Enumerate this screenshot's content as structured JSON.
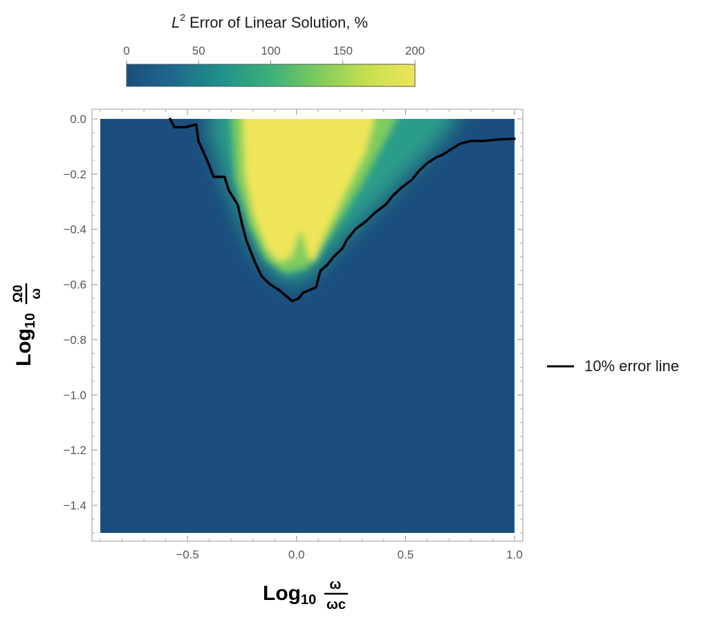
{
  "chart_data": {
    "type": "heatmap",
    "title": "Error of Linear Solution, %",
    "colorbar": {
      "title_symbol": "L",
      "title_superscript": "2",
      "title_text": "Error of Linear Solution, %",
      "range": [
        0,
        200
      ],
      "ticks": [
        "0",
        "50",
        "100",
        "150",
        "200"
      ],
      "tick_values": [
        0,
        50,
        100,
        150,
        200
      ],
      "colors": [
        "#1b4e7e",
        "#1f6a8c",
        "#21928b",
        "#3bb07a",
        "#7fcb5e",
        "#c6df4e",
        "#eee55a"
      ],
      "placement": "top"
    },
    "xlabel": {
      "prefix": "Log",
      "subscript": "10",
      "numerator": "ω",
      "denominator": "ωc"
    },
    "ylabel": {
      "prefix": "Log",
      "subscript": "10",
      "numerator": "Ω0",
      "denominator": "ω"
    },
    "xlim": [
      -0.9,
      1.0
    ],
    "ylim": [
      -1.5,
      0.0
    ],
    "x_ticks": [
      -0.5,
      0.0,
      0.5,
      1.0
    ],
    "x_tick_labels": [
      "−0.5",
      "0.0",
      "0.5",
      "1.0"
    ],
    "y_ticks": [
      0.0,
      -0.2,
      -0.4,
      -0.6,
      -0.8,
      -1.0,
      -1.2,
      -1.4
    ],
    "y_tick_labels": [
      "0.0",
      "−0.2",
      "−0.4",
      "−0.6",
      "−0.8",
      "−1.0",
      "−1.2",
      "−1.4"
    ],
    "background_value": 0,
    "high_region_value": 200,
    "contour": {
      "name": "10% error line",
      "level": 10,
      "color": "#000000",
      "points": [
        [
          -0.58,
          0.0
        ],
        [
          -0.56,
          -0.03
        ],
        [
          -0.51,
          -0.03
        ],
        [
          -0.46,
          -0.02
        ],
        [
          -0.45,
          -0.08
        ],
        [
          -0.41,
          -0.15
        ],
        [
          -0.38,
          -0.21
        ],
        [
          -0.33,
          -0.21
        ],
        [
          -0.31,
          -0.26
        ],
        [
          -0.27,
          -0.31
        ],
        [
          -0.25,
          -0.38
        ],
        [
          -0.23,
          -0.44
        ],
        [
          -0.19,
          -0.52
        ],
        [
          -0.16,
          -0.57
        ],
        [
          -0.12,
          -0.6
        ],
        [
          -0.08,
          -0.62
        ],
        [
          -0.05,
          -0.64
        ],
        [
          -0.02,
          -0.66
        ],
        [
          0.01,
          -0.65
        ],
        [
          0.03,
          -0.63
        ],
        [
          0.06,
          -0.62
        ],
        [
          0.09,
          -0.61
        ],
        [
          0.11,
          -0.55
        ],
        [
          0.14,
          -0.53
        ],
        [
          0.17,
          -0.5
        ],
        [
          0.21,
          -0.47
        ],
        [
          0.23,
          -0.44
        ],
        [
          0.27,
          -0.4
        ],
        [
          0.32,
          -0.37
        ],
        [
          0.36,
          -0.34
        ],
        [
          0.41,
          -0.31
        ],
        [
          0.44,
          -0.28
        ],
        [
          0.48,
          -0.25
        ],
        [
          0.53,
          -0.22
        ],
        [
          0.56,
          -0.19
        ],
        [
          0.6,
          -0.16
        ],
        [
          0.64,
          -0.14
        ],
        [
          0.67,
          -0.13
        ],
        [
          0.71,
          -0.11
        ],
        [
          0.75,
          -0.09
        ],
        [
          0.8,
          -0.08
        ],
        [
          0.86,
          -0.08
        ],
        [
          0.92,
          -0.075
        ],
        [
          1.0,
          -0.072
        ]
      ]
    },
    "high_region": {
      "description_value": 200,
      "boundary_top_left": -0.25,
      "boundary_top_right": 0.36,
      "left_edge": [
        [
          -0.25,
          0.0
        ],
        [
          -0.24,
          -0.2
        ],
        [
          -0.2,
          -0.35
        ],
        [
          -0.14,
          -0.47
        ],
        [
          -0.08,
          -0.52
        ]
      ],
      "right_edge": [
        [
          0.08,
          -0.52
        ],
        [
          0.12,
          -0.44
        ],
        [
          0.17,
          -0.36
        ],
        [
          0.22,
          -0.28
        ],
        [
          0.27,
          -0.2
        ],
        [
          0.32,
          -0.12
        ],
        [
          0.36,
          0.0
        ]
      ]
    },
    "legend": {
      "entries": [
        {
          "name": "10% error line",
          "color": "#000000"
        }
      ],
      "placement": "right"
    }
  }
}
